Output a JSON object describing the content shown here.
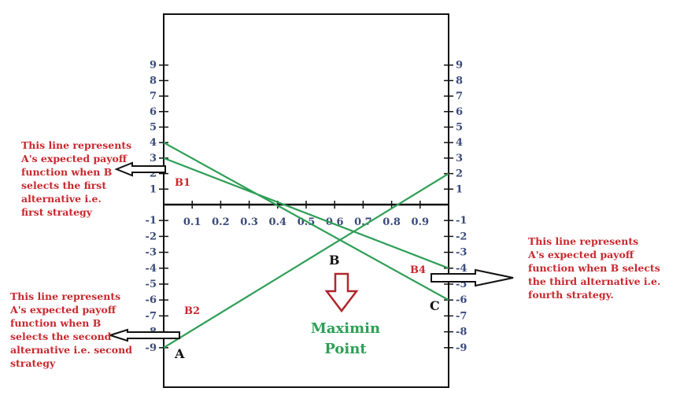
{
  "chart_data": {
    "type": "line",
    "x_ticks": [
      "0.1",
      "0.2",
      "0.3",
      "0.4",
      "0.5",
      "0.6",
      "0.7",
      "0.8",
      "0.9"
    ],
    "y_ticks_left": [
      "9",
      "8",
      "7",
      "6",
      "5",
      "4",
      "3",
      "2",
      "1",
      "-1",
      "-2",
      "-3",
      "-4",
      "-5",
      "-6",
      "-7",
      "-8",
      "-9"
    ],
    "y_ticks_right": [
      "9",
      "8",
      "7",
      "6",
      "5",
      "4",
      "3",
      "2",
      "1",
      "-1",
      "-2",
      "-3",
      "-4",
      "-5",
      "-6",
      "-7",
      "-8",
      "-9"
    ],
    "xlim": [
      0,
      1
    ],
    "ylim": [
      -9,
      9
    ],
    "series": [
      {
        "name": "B1",
        "x": [
          0,
          1
        ],
        "y": [
          3,
          -4
        ]
      },
      {
        "name": "B2",
        "x": [
          0,
          1
        ],
        "y": [
          -9,
          2
        ]
      },
      {
        "name": "B4",
        "x": [
          0,
          1
        ],
        "y": [
          4,
          -6
        ]
      }
    ],
    "line_color": "#2e9e56",
    "point_labels": [
      "A",
      "B",
      "C"
    ],
    "maximin_label_line1": "Maximin",
    "maximin_label_line2": "Point"
  },
  "annotations": {
    "left_top": [
      "This line represents",
      "A's expected payoff",
      "function when B",
      "selects the first",
      "alternative i.e.",
      "first strategy"
    ],
    "left_bottom": [
      "This line represents",
      "A's expected payoff",
      "function when B",
      "selects the second",
      "alternative i.e. second",
      "strategy"
    ],
    "right": [
      "This line represents",
      "A's expected payoff",
      "function when B selects",
      "the third alternative i.e.",
      "fourth strategy."
    ]
  },
  "colors": {
    "annotation_text": "#c8282e",
    "tick_text": "#3b4a7a",
    "line": "#2e9e56",
    "arrow_down": "#b0262c"
  }
}
